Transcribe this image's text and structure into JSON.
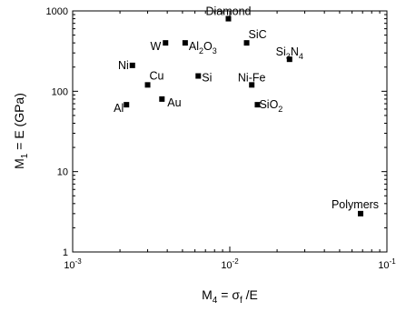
{
  "chart_data": {
    "type": "scatter",
    "x_scale": "log",
    "y_scale": "log",
    "xlim": [
      0.001,
      0.1
    ],
    "ylim": [
      1,
      1000
    ],
    "xlabel": {
      "main": "M",
      "sub": "4",
      "rest": " =  σ",
      "sub2": "f",
      "tail": " /E"
    },
    "ylabel": {
      "main": "M",
      "sub": "1",
      "rest": " = E (GPa)"
    },
    "x_ticks": [
      {
        "value": 0.001,
        "base": "10",
        "exp": "-3"
      },
      {
        "value": 0.01,
        "base": "10",
        "exp": "-2"
      },
      {
        "value": 0.1,
        "base": "10",
        "exp": "-1"
      }
    ],
    "y_ticks": [
      {
        "value": 1,
        "label": "1"
      },
      {
        "value": 10,
        "label": "10"
      },
      {
        "value": 100,
        "label": "100"
      },
      {
        "value": 1000,
        "label": "1000"
      }
    ],
    "grid": false,
    "points": [
      {
        "name": "Diamond",
        "label": [
          {
            "t": "Diamond"
          }
        ],
        "x": 0.0098,
        "y": 800,
        "anchor": "middle",
        "dx": 0,
        "dy": -8
      },
      {
        "name": "W",
        "label": [
          {
            "t": "W"
          }
        ],
        "x": 0.0039,
        "y": 400,
        "anchor": "end",
        "dx": -5,
        "dy": 4
      },
      {
        "name": "Al2O3",
        "label": [
          {
            "t": "Al"
          },
          {
            "t": "2",
            "sub": true
          },
          {
            "t": "O"
          },
          {
            "t": "3",
            "sub": true
          }
        ],
        "x": 0.0052,
        "y": 400,
        "anchor": "start",
        "dx": 4,
        "dy": 4
      },
      {
        "name": "SiC",
        "label": [
          {
            "t": "SiC"
          }
        ],
        "x": 0.0128,
        "y": 400,
        "anchor": "start",
        "dx": 2,
        "dy": -9
      },
      {
        "name": "Si3N4",
        "label": [
          {
            "t": "Si"
          },
          {
            "t": "3",
            "sub": true
          },
          {
            "t": "N"
          },
          {
            "t": "4",
            "sub": true
          }
        ],
        "x": 0.024,
        "y": 250,
        "anchor": "middle",
        "dx": 0,
        "dy": -8
      },
      {
        "name": "Ni",
        "label": [
          {
            "t": "Ni"
          }
        ],
        "x": 0.0024,
        "y": 210,
        "anchor": "end",
        "dx": -4,
        "dy": 0
      },
      {
        "name": "Cu",
        "label": [
          {
            "t": "Cu"
          }
        ],
        "x": 0.003,
        "y": 120,
        "anchor": "start",
        "dx": 2,
        "dy": -10
      },
      {
        "name": "Si",
        "label": [
          {
            "t": "Si"
          }
        ],
        "x": 0.0063,
        "y": 155,
        "anchor": "start",
        "dx": 4,
        "dy": 2
      },
      {
        "name": "Ni-Fe",
        "label": [
          {
            "t": "Ni-Fe"
          }
        ],
        "x": 0.0138,
        "y": 120,
        "anchor": "middle",
        "dx": 0,
        "dy": -8
      },
      {
        "name": "Al",
        "label": [
          {
            "t": "Al"
          }
        ],
        "x": 0.0022,
        "y": 68,
        "anchor": "end",
        "dx": -3,
        "dy": 4
      },
      {
        "name": "Au",
        "label": [
          {
            "t": "Au"
          }
        ],
        "x": 0.0037,
        "y": 80,
        "anchor": "start",
        "dx": 6,
        "dy": 4
      },
      {
        "name": "SiO2",
        "label": [
          {
            "t": "SiO"
          },
          {
            "t": "2",
            "sub": true
          }
        ],
        "x": 0.015,
        "y": 68,
        "anchor": "start",
        "dx": 2,
        "dy": 0
      },
      {
        "name": "Polymers",
        "label": [
          {
            "t": "Polymers"
          }
        ],
        "x": 0.068,
        "y": 3,
        "anchor": "middle",
        "dx": -6,
        "dy": -10
      }
    ]
  }
}
